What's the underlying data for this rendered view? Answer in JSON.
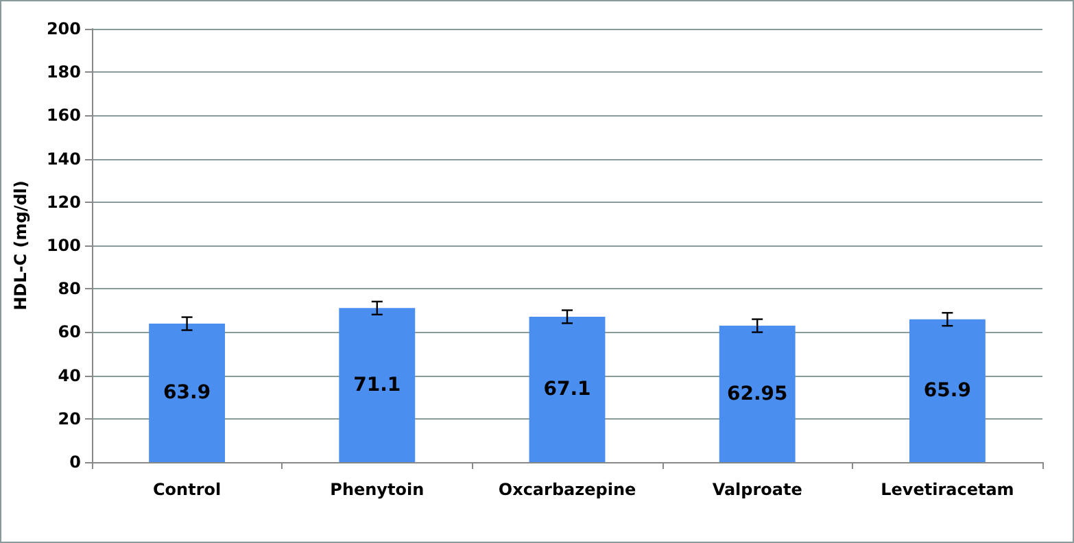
{
  "chart_data": {
    "type": "bar",
    "ylabel": "HDL-C (mg/dl)",
    "categories": [
      "Control",
      "Phenytoin",
      "Oxcarbazepine",
      "Valproate",
      "Levetiracetam"
    ],
    "values": [
      63.9,
      71.1,
      67.1,
      62.95,
      65.9
    ],
    "errors": [
      3,
      3,
      3,
      3,
      3
    ],
    "color": "#4a8ef0",
    "ylim": [
      0,
      200
    ],
    "yticks": [
      0,
      20,
      40,
      60,
      80,
      100,
      120,
      140,
      160,
      180,
      200
    ],
    "grid": "y",
    "data_labels": true
  }
}
